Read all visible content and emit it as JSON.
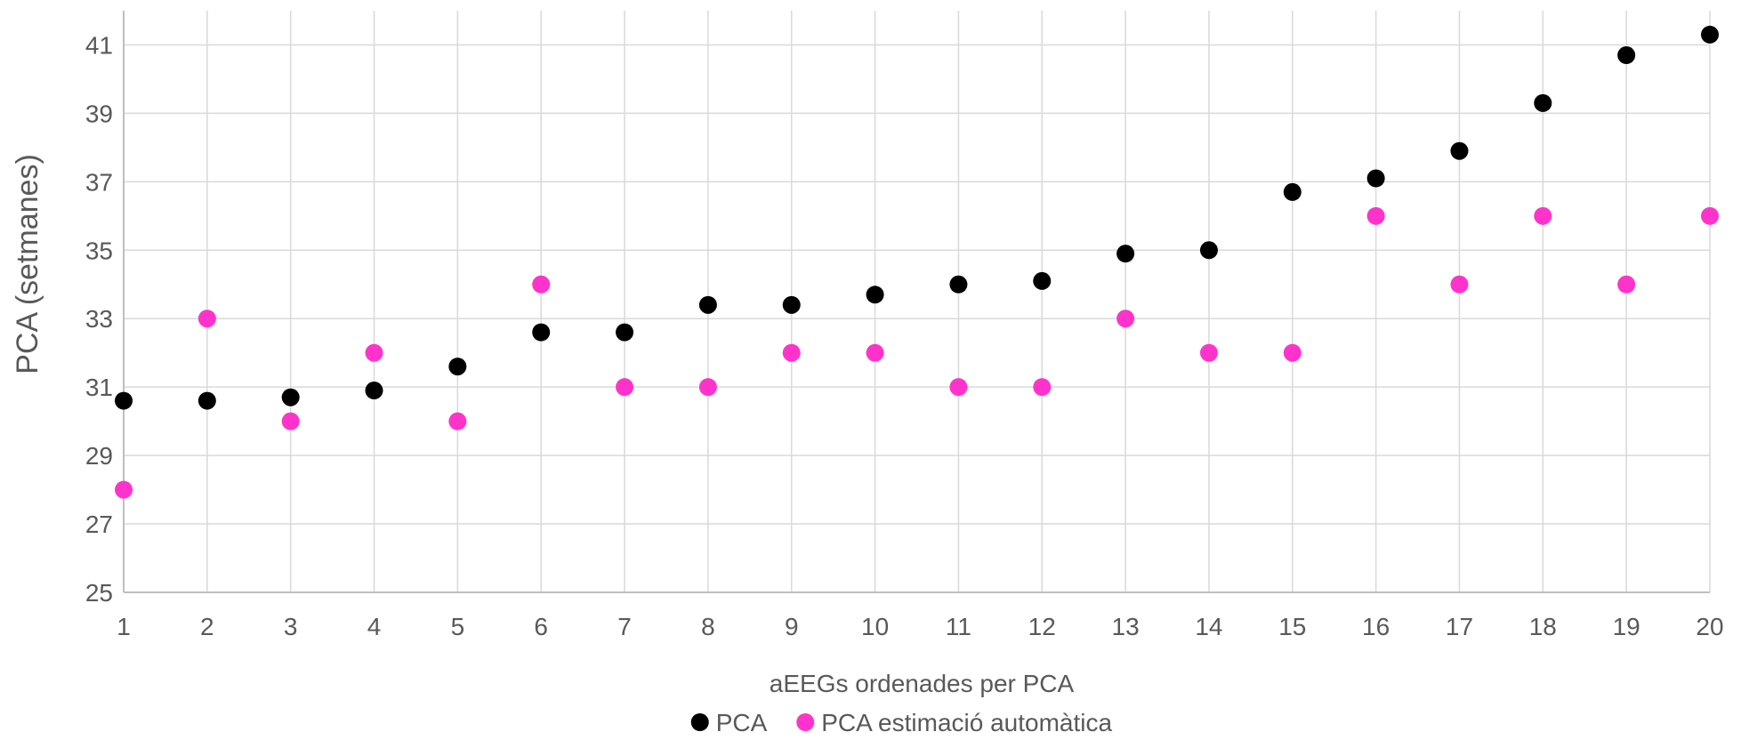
{
  "chart_data": {
    "type": "scatter",
    "title": "",
    "xlabel": "aEEGs ordenades per PCA",
    "ylabel": "PCA (setmanes)",
    "xlim": [
      1,
      20
    ],
    "ylim": [
      25,
      42
    ],
    "x_ticks": [
      1,
      2,
      3,
      4,
      5,
      6,
      7,
      8,
      9,
      10,
      11,
      12,
      13,
      14,
      15,
      16,
      17,
      18,
      19,
      20
    ],
    "y_ticks": [
      25,
      27,
      29,
      31,
      33,
      35,
      37,
      39,
      41
    ],
    "grid": true,
    "legend_position": "bottom",
    "series": [
      {
        "name": "PCA",
        "color": "#000000",
        "x": [
          1,
          2,
          3,
          4,
          5,
          6,
          7,
          8,
          9,
          10,
          11,
          12,
          13,
          14,
          15,
          16,
          17,
          18,
          19,
          20
        ],
        "y": [
          30.6,
          30.6,
          30.7,
          30.9,
          31.6,
          32.6,
          32.6,
          33.4,
          33.4,
          33.7,
          34.0,
          34.1,
          34.9,
          35.0,
          36.7,
          37.1,
          37.9,
          39.3,
          40.7,
          41.3
        ]
      },
      {
        "name": "PCA estimació automàtica",
        "color": "#FF33CC",
        "x": [
          1,
          2,
          3,
          4,
          5,
          6,
          7,
          8,
          9,
          10,
          11,
          12,
          13,
          14,
          15,
          16,
          17,
          18,
          19,
          20
        ],
        "y": [
          28,
          33,
          30,
          32,
          30,
          34,
          31,
          31,
          32,
          32,
          31,
          31,
          33,
          32,
          32,
          36,
          34,
          36,
          34,
          36
        ]
      }
    ]
  }
}
